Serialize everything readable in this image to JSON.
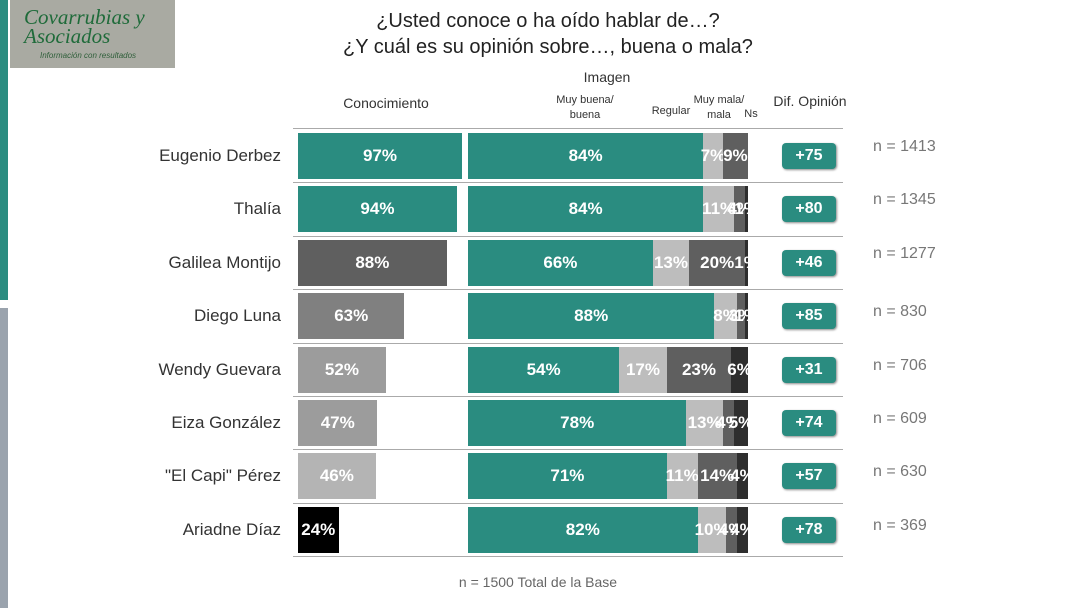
{
  "logo": {
    "name": "Covarrubias y Asociados",
    "tagline": "Información con resultados"
  },
  "chart_data": {
    "type": "stacked-bar-table",
    "title": "¿Usted conoce o ha oído hablar de…?",
    "subtitle": "¿Y cuál es su opinión sobre…, buena o mala?",
    "categories": [
      "Eugenio Derbez",
      "Thalía",
      "Galilea Montijo",
      "Diego Luna",
      "Wendy Guevara",
      "Eiza González",
      "\"El Capi\" Pérez",
      "Ariadne Díaz"
    ],
    "conocimiento": {
      "name": "Conocimiento",
      "values": [
        97,
        94,
        88,
        63,
        52,
        47,
        46,
        24
      ],
      "value_labels": [
        "97%",
        "94%",
        "88%",
        "63%",
        "52%",
        "47%",
        "46%",
        "24%"
      ],
      "colors": [
        "#2a8c80",
        "#2a8c80",
        "#5f5f5f",
        "#808080",
        "#9c9c9c",
        "#9c9c9c",
        "#b4b4b4",
        "#000000"
      ]
    },
    "image_title": "Imagen",
    "series": [
      {
        "name": "Muy buena/ buena",
        "color": "#2a8c80",
        "values": [
          84,
          84,
          66,
          88,
          54,
          78,
          71,
          82
        ],
        "value_labels": [
          "84%",
          "84%",
          "66%",
          "88%",
          "54%",
          "78%",
          "71%",
          "82%"
        ]
      },
      {
        "name": "Regular",
        "color": "#bdbdbd",
        "values": [
          7,
          11,
          13,
          8,
          17,
          13,
          11,
          10
        ],
        "value_labels": [
          "7%",
          "11%",
          "13%",
          "8%",
          "17%",
          "13%",
          "11%",
          "10%"
        ]
      },
      {
        "name": "Muy mala/ mala",
        "color": "#5f5f5f",
        "values": [
          9,
          4,
          20,
          3,
          23,
          4,
          14,
          4
        ],
        "value_labels": [
          "9%",
          "4%",
          "20%",
          "3%",
          "23%",
          "4%",
          "14%",
          "4%"
        ]
      },
      {
        "name": "Ns",
        "color": "#2e2e2e",
        "values": [
          null,
          1,
          1,
          1,
          6,
          5,
          4,
          4
        ],
        "value_labels": [
          null,
          "1%",
          "1%",
          "1%",
          "6%",
          "5%",
          "4%",
          "4%"
        ]
      }
    ],
    "diff": {
      "name": "Dif. Opinión",
      "color": "#2a8c80",
      "values": [
        75,
        80,
        46,
        85,
        31,
        74,
        57,
        78
      ],
      "value_labels": [
        "+75",
        "+80",
        "+46",
        "+85",
        "+31",
        "+74",
        "+57",
        "+78"
      ]
    },
    "n_labels": [
      "n = 1413",
      "n = 1345",
      "n = 1277",
      "n = 830",
      "n = 706",
      "n = 609",
      "n = 630",
      "n = 369"
    ],
    "footnote": "n = 1500 Total de la Base"
  }
}
